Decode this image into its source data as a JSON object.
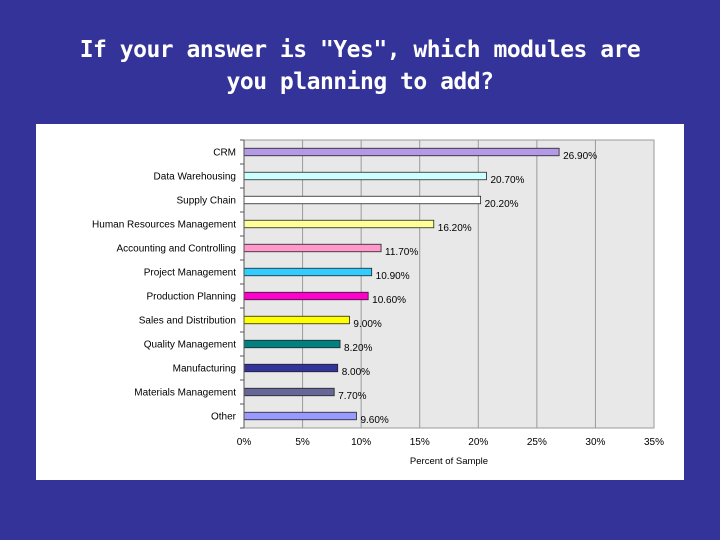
{
  "slide": {
    "title_line1": "If your answer is \"Yes\", which modules are",
    "title_line2": "you planning to add?"
  },
  "colors": {
    "background": "#333399",
    "plot_area": "#e8e8e8",
    "gridline": "#9a9a9a"
  },
  "chart_data": {
    "type": "bar",
    "orientation": "horizontal",
    "title": "",
    "xlabel": "Percent of Sample",
    "ylabel": "",
    "xlim": [
      0,
      35
    ],
    "x_ticks": [
      "0%",
      "5%",
      "10%",
      "15%",
      "20%",
      "25%",
      "30%",
      "35%"
    ],
    "grid": true,
    "categories": [
      "CRM",
      "Data Warehousing",
      "Supply Chain",
      "Human Resources Management",
      "Accounting and Controlling",
      "Project Management",
      "Production Planning",
      "Sales and Distribution",
      "Quality Management",
      "Manufacturing",
      "Materials Management",
      "Other"
    ],
    "values": [
      26.9,
      20.7,
      20.2,
      16.2,
      11.7,
      10.9,
      10.6,
      9.0,
      8.2,
      8.0,
      7.7,
      9.6
    ],
    "value_labels": [
      "26.90%",
      "20.70%",
      "20.20%",
      "16.20%",
      "11.70%",
      "10.90%",
      "10.60%",
      "9.00%",
      "8.20%",
      "8.00%",
      "7.70%",
      "9.60%"
    ],
    "bar_colors": [
      "#b399e6",
      "#ccffff",
      "#ffffff",
      "#ffff99",
      "#ff99cc",
      "#33ccff",
      "#ff00cc",
      "#ffff00",
      "#008080",
      "#333399",
      "#666699",
      "#9999ff"
    ]
  }
}
